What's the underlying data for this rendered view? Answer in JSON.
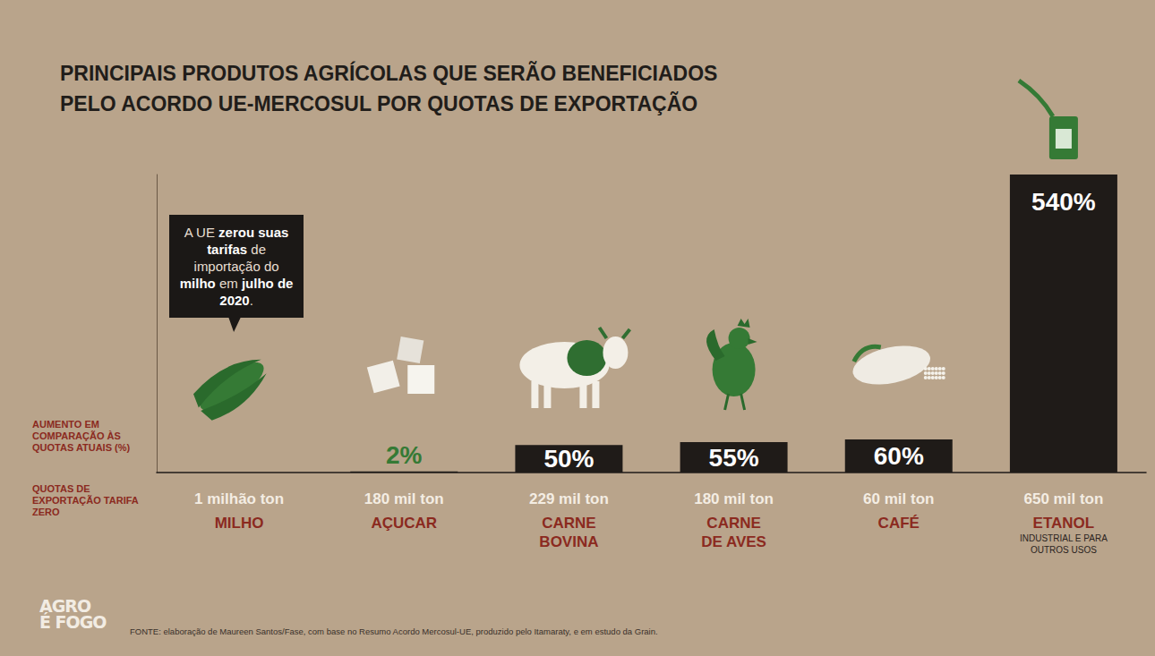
{
  "chart_data": {
    "type": "bar",
    "title": "PRINCIPAIS PRODUTOS AGRÍCOLAS QUE SERÃO BENEFICIADOS PELO ACORDO UE-MERCOSUL POR QUOTAS DE EXPORTAÇÃO",
    "categories": [
      "MILHO",
      "AÇUCAR",
      "CARNE BOVINA",
      "CARNE DE AVES",
      "CAFÉ",
      "ETANOL"
    ],
    "category_notes": [
      null,
      null,
      null,
      null,
      null,
      "INDUSTRIAL E PARA OUTROS USOS"
    ],
    "values": [
      null,
      2,
      50,
      55,
      60,
      540
    ],
    "value_labels": [
      null,
      "2%",
      "50%",
      "55%",
      "60%",
      "540%"
    ],
    "color": "#1f1b18",
    "data_labels": true,
    "ylim": [
      0,
      540
    ],
    "yticks": [],
    "grid": false,
    "tick_labels": "x",
    "row_labels": {
      "increase": "AUMENTO EM COMPARAÇÃO ÀS QUOTAS ATUAIS (%)",
      "quotas": "QUOTAS DE EXPORTAÇÃO TARIFA ZERO"
    },
    "quota_labels": [
      "1 milhão ton",
      "180 mil ton",
      "229 mil ton",
      "180 mil ton",
      "60 mil ton",
      "650 mil ton"
    ],
    "annotation": {
      "category": "MILHO",
      "segments": [
        {
          "text": "A UE ",
          "bold": false
        },
        {
          "text": "zerou suas tarifas",
          "bold": true
        },
        {
          "text": " de importação do ",
          "bold": false
        },
        {
          "text": "milho",
          "bold": true
        },
        {
          "text": " em ",
          "bold": false
        },
        {
          "text": "julho de 2020",
          "bold": true
        },
        {
          "text": ".",
          "bold": false
        }
      ]
    },
    "source": "FONTE: elaboração de Maureen Santos/Fase, com base no Resumo Acordo Mercosul-UE, produzido pelo Itamaraty, e em estudo da Grain.",
    "logo": [
      "AGRO",
      "É FOGO"
    ]
  }
}
